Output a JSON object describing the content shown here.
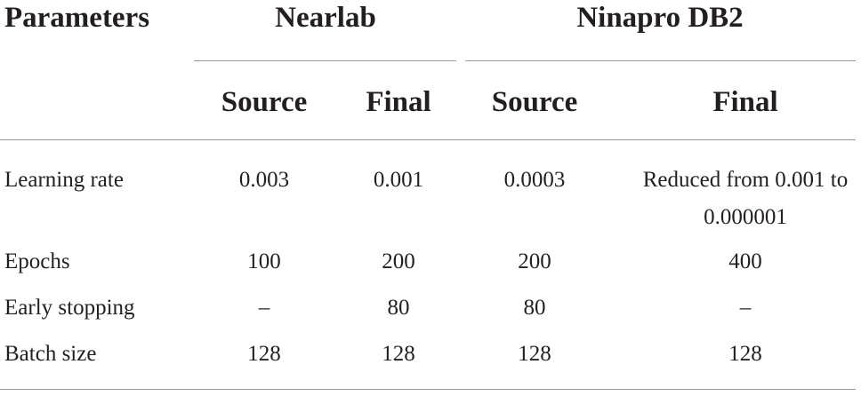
{
  "table": {
    "header": {
      "parameters": "Parameters",
      "groups": [
        "Nearlab",
        "Ninapro DB2"
      ],
      "subheaders": [
        "Source",
        "Final",
        "Source",
        "Final"
      ]
    },
    "rows": [
      [
        "Learning rate",
        "0.003",
        "0.001",
        "0.0003",
        "Reduced from 0.001 to 0.000001"
      ],
      [
        "Epochs",
        "100",
        "200",
        "200",
        "400"
      ],
      [
        "Early stopping",
        "–",
        "80",
        "80",
        "–"
      ],
      [
        "Batch size",
        "128",
        "128",
        "128",
        "128"
      ]
    ]
  }
}
